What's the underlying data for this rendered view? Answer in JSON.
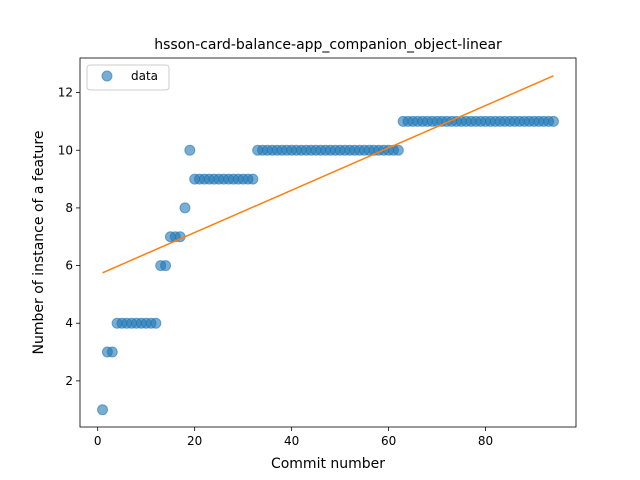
{
  "chart_data": {
    "type": "scatter",
    "title": "hsson-card-balance-app_companion_object-linear",
    "xlabel": "Commit number",
    "ylabel": "Number of instance of a feature",
    "xlim": [
      -3.65,
      98.65
    ],
    "ylim": [
      0.4,
      13.2
    ],
    "xticks": [
      0,
      20,
      40,
      60,
      80
    ],
    "yticks": [
      2,
      4,
      6,
      8,
      10,
      12
    ],
    "grid": false,
    "legend_position": "upper-left",
    "series": [
      {
        "name": "data",
        "kind": "scatter",
        "color": "#1f77b4",
        "x": [
          1,
          2,
          3,
          4,
          5,
          6,
          7,
          8,
          9,
          10,
          11,
          12,
          13,
          14,
          15,
          16,
          17,
          18,
          19,
          20,
          21,
          22,
          23,
          24,
          25,
          26,
          27,
          28,
          29,
          30,
          31,
          32,
          33,
          34,
          35,
          36,
          37,
          38,
          39,
          40,
          41,
          42,
          43,
          44,
          45,
          46,
          47,
          48,
          49,
          50,
          51,
          52,
          53,
          54,
          55,
          56,
          57,
          58,
          59,
          60,
          61,
          62,
          63,
          64,
          65,
          66,
          67,
          68,
          69,
          70,
          71,
          72,
          73,
          74,
          75,
          76,
          77,
          78,
          79,
          80,
          81,
          82,
          83,
          84,
          85,
          86,
          87,
          88,
          89,
          90,
          91,
          92,
          93,
          94
        ],
        "y": [
          1,
          3,
          3,
          4,
          4,
          4,
          4,
          4,
          4,
          4,
          4,
          4,
          6,
          6,
          7,
          7,
          7,
          8,
          10,
          9,
          9,
          9,
          9,
          9,
          9,
          9,
          9,
          9,
          9,
          9,
          9,
          9,
          10,
          10,
          10,
          10,
          10,
          10,
          10,
          10,
          10,
          10,
          10,
          10,
          10,
          10,
          10,
          10,
          10,
          10,
          10,
          10,
          10,
          10,
          10,
          10,
          10,
          10,
          10,
          10,
          10,
          10,
          11,
          11,
          11,
          11,
          11,
          11,
          11,
          11,
          11,
          11,
          11,
          11,
          11,
          11,
          11,
          11,
          11,
          11,
          11,
          11,
          11,
          11,
          11,
          11,
          11,
          11,
          11,
          11,
          11,
          11,
          11,
          11
        ]
      },
      {
        "name": "",
        "kind": "line",
        "color": "#ff7f0e",
        "x": [
          1,
          94
        ],
        "y": [
          5.75,
          12.58
        ]
      }
    ]
  }
}
